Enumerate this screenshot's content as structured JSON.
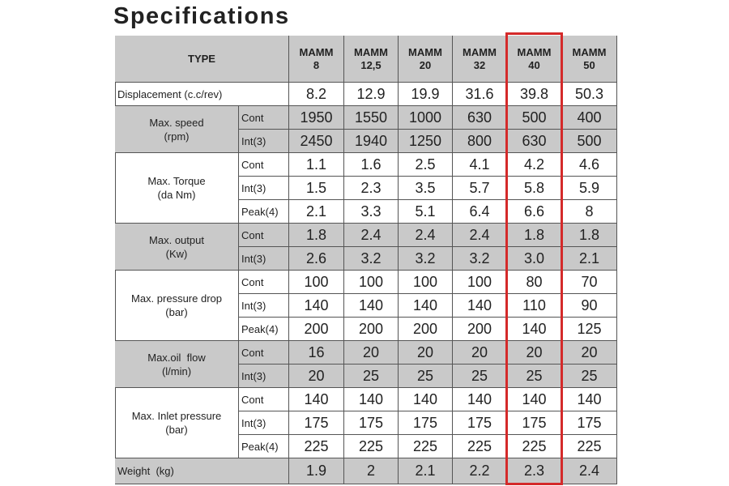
{
  "title": "Specifications",
  "table": {
    "type_label": "TYPE",
    "models": [
      [
        "MAMM",
        "8"
      ],
      [
        "MAMM",
        "12,5"
      ],
      [
        "MAMM",
        "20"
      ],
      [
        "MAMM",
        "32"
      ],
      [
        "MAMM",
        "40"
      ],
      [
        "MAMM",
        "50"
      ]
    ],
    "groups": [
      {
        "name": [
          "Displacement (c.c/rev)"
        ],
        "rows": [
          {
            "values": [
              "8.2",
              "12.9",
              "19.9",
              "31.6",
              "39.8",
              "50.3"
            ]
          }
        ]
      },
      {
        "name": [
          "Max. speed",
          "(rpm)"
        ],
        "rows": [
          {
            "mode": "Cont",
            "values": [
              "1950",
              "1550",
              "1000",
              "630",
              "500",
              "400"
            ]
          },
          {
            "mode": "Int(3)",
            "values": [
              "2450",
              "1940",
              "1250",
              "800",
              "630",
              "500"
            ]
          }
        ]
      },
      {
        "name": [
          "Max. Torque",
          "(da Nm)"
        ],
        "rows": [
          {
            "mode": "Cont",
            "values": [
              "1.1",
              "1.6",
              "2.5",
              "4.1",
              "4.2",
              "4.6"
            ]
          },
          {
            "mode": "Int(3)",
            "values": [
              "1.5",
              "2.3",
              "3.5",
              "5.7",
              "5.8",
              "5.9"
            ]
          },
          {
            "mode": "Peak(4)",
            "values": [
              "2.1",
              "3.3",
              "5.1",
              "6.4",
              "6.6",
              "8"
            ]
          }
        ]
      },
      {
        "name": [
          "Max. output",
          "(Kw)"
        ],
        "rows": [
          {
            "mode": "Cont",
            "values": [
              "1.8",
              "2.4",
              "2.4",
              "2.4",
              "1.8",
              "1.8"
            ]
          },
          {
            "mode": "Int(3)",
            "values": [
              "2.6",
              "3.2",
              "3.2",
              "3.2",
              "3.0",
              "2.1"
            ]
          }
        ]
      },
      {
        "name": [
          "Max. pressure drop",
          "(bar)"
        ],
        "rows": [
          {
            "mode": "Cont",
            "values": [
              "100",
              "100",
              "100",
              "100",
              "80",
              "70"
            ]
          },
          {
            "mode": "Int(3)",
            "values": [
              "140",
              "140",
              "140",
              "140",
              "110",
              "90"
            ]
          },
          {
            "mode": "Peak(4)",
            "values": [
              "200",
              "200",
              "200",
              "200",
              "140",
              "125"
            ]
          }
        ]
      },
      {
        "name": [
          "Max.oil  flow",
          "(l/min)"
        ],
        "rows": [
          {
            "mode": "Cont",
            "values": [
              "16",
              "20",
              "20",
              "20",
              "20",
              "20"
            ]
          },
          {
            "mode": "Int(3)",
            "values": [
              "20",
              "25",
              "25",
              "25",
              "25",
              "25"
            ]
          }
        ]
      },
      {
        "name": [
          "Max. Inlet pressure",
          "(bar)"
        ],
        "rows": [
          {
            "mode": "Cont",
            "values": [
              "140",
              "140",
              "140",
              "140",
              "140",
              "140"
            ]
          },
          {
            "mode": "Int(3)",
            "values": [
              "175",
              "175",
              "175",
              "175",
              "175",
              "175"
            ]
          },
          {
            "mode": "Peak(4)",
            "values": [
              "225",
              "225",
              "225",
              "225",
              "225",
              "225"
            ]
          }
        ]
      },
      {
        "name": [
          "Weight  (kg)"
        ],
        "rows": [
          {
            "values": [
              "1.9",
              "2",
              "2.1",
              "2.2",
              "2.3",
              "2.4"
            ]
          }
        ]
      }
    ]
  }
}
